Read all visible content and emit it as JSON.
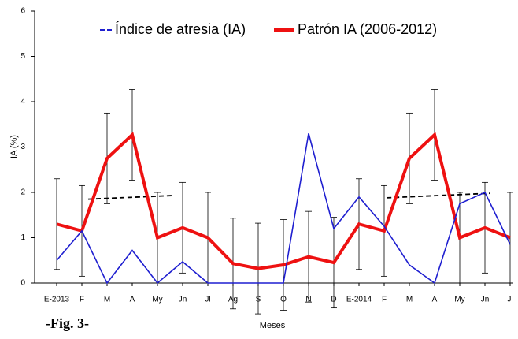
{
  "chart_data": {
    "type": "line",
    "ylabel": "IA (%)",
    "xlabel": "Meses",
    "annotation": "-Fig. 3-",
    "categories": [
      "E-2013",
      "F",
      "M",
      "A",
      "My",
      "Jn",
      "Jl",
      "Ag",
      "S",
      "O",
      "N",
      "D",
      "E-2014",
      "F",
      "M",
      "A",
      "My",
      "Jn",
      "Jl"
    ],
    "series": [
      {
        "name": "Índice de atresia (IA)",
        "color": "#1f1fd0",
        "values": [
          0.5,
          1.15,
          0,
          0.72,
          0,
          0.47,
          0,
          0,
          0,
          0,
          3.3,
          1.2,
          1.9,
          1.25,
          0.4,
          0,
          1.75,
          2.0,
          0.85
        ]
      },
      {
        "name": "Patrón IA (2006-2012)",
        "color": "#ee1111",
        "values": [
          1.3,
          1.15,
          2.75,
          3.27,
          1.0,
          1.22,
          1.0,
          0.43,
          0.32,
          0.4,
          0.58,
          0.45,
          1.3,
          1.15,
          2.75,
          3.27,
          1.0,
          1.22,
          1.0
        ],
        "errors": [
          1,
          1,
          1,
          1,
          1,
          1,
          1,
          1,
          1,
          1,
          1,
          1,
          1,
          1,
          1,
          1,
          1,
          1,
          1
        ]
      }
    ],
    "trend_lines": [
      {
        "x": [
          1.25,
          4.6
        ],
        "values": [
          1.85,
          1.93
        ]
      },
      {
        "x": [
          13.1,
          17.2
        ],
        "values": [
          1.88,
          1.98
        ]
      }
    ],
    "ylim": [
      0,
      6
    ],
    "yticks": [
      0,
      1,
      2,
      3,
      4,
      5,
      6
    ],
    "grid": false
  }
}
